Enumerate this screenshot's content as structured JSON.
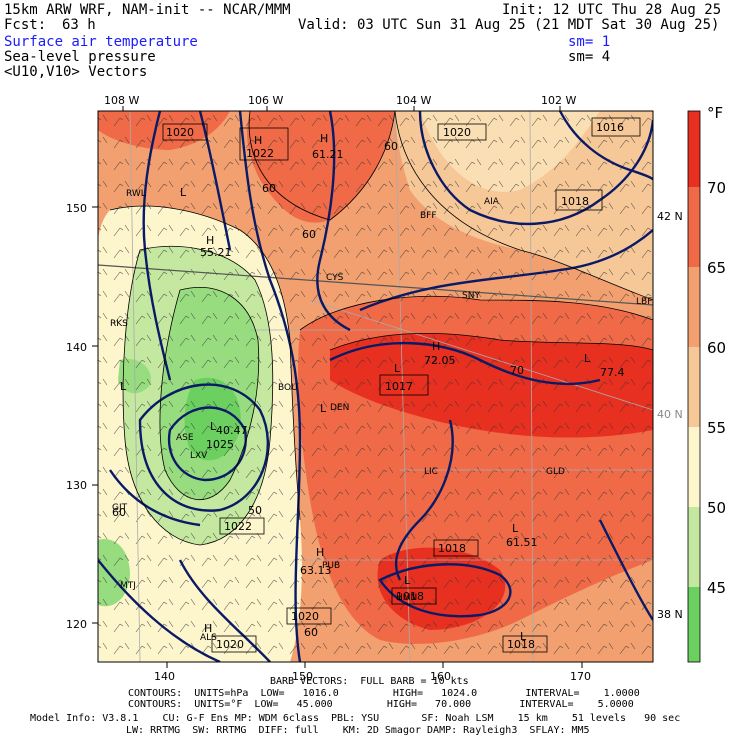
{
  "header": {
    "model": "15km ARW WRF, NAM-init -- NCAR/MMM",
    "init": "Init: 12 UTC Thu 28 Aug 25",
    "fcst_label": "Fcst:",
    "fcst_value": "63 h",
    "valid": "Valid: 03 UTC Sun 31 Aug 25 (21 MDT Sat 30 Aug 25)",
    "field1": "Surface air temperature",
    "field1_sm": "sm= 1",
    "field2": "Sea-level pressure",
    "field2_sm": "sm= 4",
    "field3": "<U10,V10> Vectors"
  },
  "map": {
    "top_lon_labels": [
      "108 W",
      "106 W",
      "104 W",
      "102 W"
    ],
    "left_y_labels": [
      "150",
      "140",
      "130",
      "120"
    ],
    "bottom_x_labels": [
      "140",
      "150",
      "160",
      "170"
    ],
    "right_lat_labels": [
      "42 N",
      "40 N",
      "38 N"
    ],
    "station_labels": [
      "RWL",
      "BFF",
      "AIA",
      "LBF",
      "SNY",
      "RKS",
      "BOU",
      "DEN",
      "LIC",
      "GLD",
      "LXV",
      "GJT",
      "ASE",
      "PUB",
      "MTJ",
      "ALS",
      "HMN",
      "CYS"
    ],
    "pressure_box_labels": [
      "1020",
      "1022",
      "1020",
      "1016",
      "1018",
      "1017",
      "1022",
      "1018",
      "1018",
      "1020",
      "1020",
      "1018"
    ],
    "other_labels": [
      "H",
      "L",
      "H",
      "H",
      "L",
      "L",
      "L",
      "H",
      "L",
      "H",
      "L",
      "H",
      "L",
      "L",
      "L",
      "60",
      "60",
      "60",
      "60",
      "70",
      "61.21",
      "55.21",
      "72.05",
      "77.4",
      "40.47",
      "50",
      "61.51",
      "63.13",
      "60",
      "1025"
    ]
  },
  "colorbar": {
    "unit": "°F",
    "labels": [
      "70",
      "65",
      "60",
      "55",
      "50",
      "45"
    ],
    "colors": [
      "#e83020",
      "#f06a48",
      "#f2a070",
      "#f6c898",
      "#fdf5cc",
      "#c4e8a0",
      "#98dc80",
      "#6cd060"
    ]
  },
  "footer": {
    "barb": "BARB VECTORS:  FULL BARB = 10 kts",
    "contours1": "CONTOURS:  UNITS=hPa  LOW=   1016.0         HIGH=   1024.0        INTERVAL=    1.0000",
    "contours2": "CONTOURS:  UNITS=°F  LOW=   45.000         HIGH=   70.000        INTERVAL=    5.0000",
    "model_info1": "Model Info: V3.8.1    CU: G-F Ens MP: WDM 6class  PBL: YSU       SF: Noah LSM    15 km    51 levels   90 sec",
    "model_info2": "LW: RRTMG  SW: RRTMG  DIFF: full    KM: 2D Smagor DAMP: Rayleigh3  SFLAY: MM5"
  }
}
